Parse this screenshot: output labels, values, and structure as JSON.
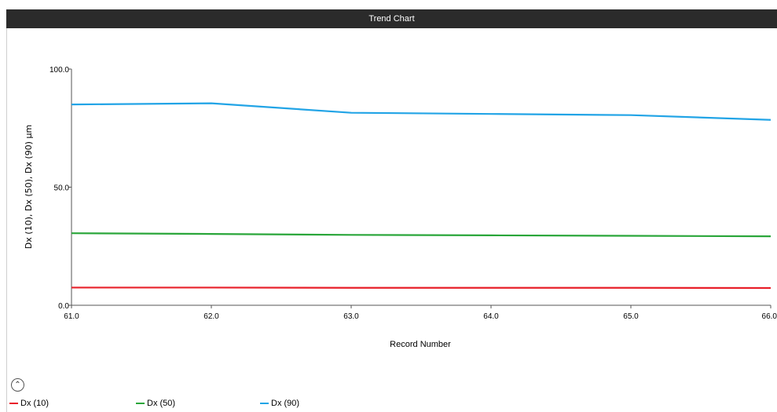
{
  "window": {
    "title": "Trend Chart"
  },
  "controls": {
    "collapse_icon": "chevron-up-icon",
    "collapse_glyph": "⌃"
  },
  "chart_data": {
    "type": "line",
    "xlabel": "Record Number",
    "ylabel": "Dx (10), Dx (50), Dx (90) µm",
    "x": [
      61.0,
      62.0,
      63.0,
      64.0,
      65.0,
      66.0
    ],
    "xlim": [
      61.0,
      66.0
    ],
    "ylim": [
      0.0,
      100.0
    ],
    "xticks": [
      "61.0",
      "62.0",
      "63.0",
      "64.0",
      "65.0",
      "66.0"
    ],
    "yticks": [
      "0.0",
      "50.0",
      "100.0"
    ],
    "grid": false,
    "legend_position": "bottom",
    "series": [
      {
        "name": "Dx (10)",
        "color": "#e8202a",
        "values": [
          7.5,
          7.5,
          7.4,
          7.4,
          7.4,
          7.3
        ]
      },
      {
        "name": "Dx (50)",
        "color": "#2aa63a",
        "values": [
          30.5,
          30.2,
          29.8,
          29.6,
          29.4,
          29.2
        ]
      },
      {
        "name": "Dx (90)",
        "color": "#22a4e6",
        "values": [
          85.0,
          85.5,
          81.5,
          81.0,
          80.5,
          78.5
        ]
      }
    ]
  }
}
